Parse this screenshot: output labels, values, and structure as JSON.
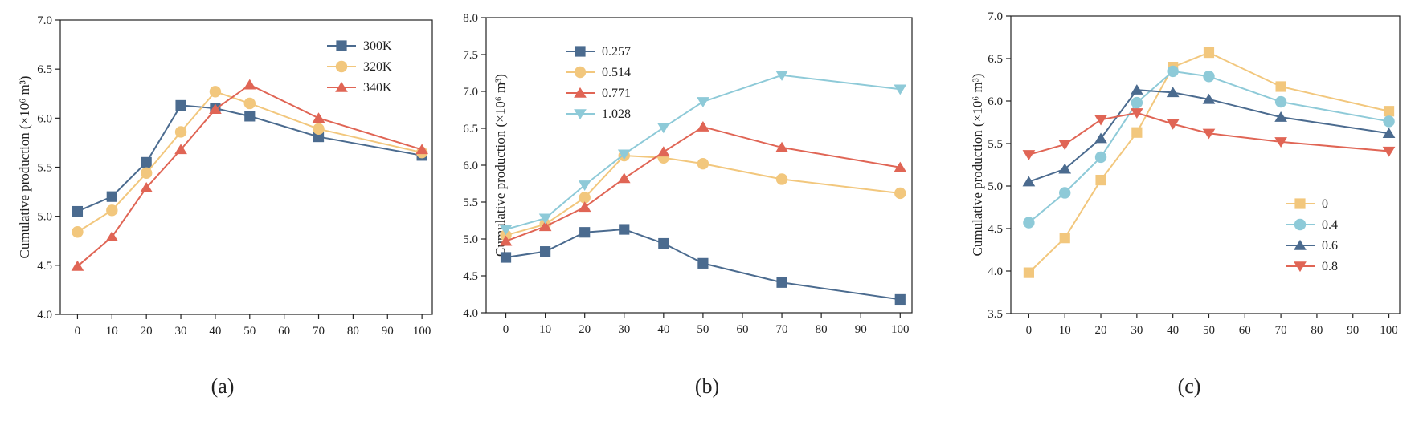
{
  "colors": {
    "blue": "#4b6b8f",
    "yellow": "#f2c77d",
    "red": "#e06555",
    "cyan": "#8ecad8",
    "axis": "#222222"
  },
  "chart_data": [
    {
      "type": "line",
      "caption": "(a)",
      "ylabel": "Cumulative production (×10⁶ m³)",
      "xlabel": "",
      "x": [
        0,
        10,
        20,
        30,
        40,
        50,
        70,
        100
      ],
      "xlim": [
        -5,
        103
      ],
      "ylim": [
        4.0,
        7.0
      ],
      "xticks": [
        0,
        10,
        20,
        30,
        40,
        50,
        60,
        70,
        80,
        90,
        100
      ],
      "yticks": [
        4.0,
        4.5,
        5.0,
        5.5,
        6.0,
        6.5,
        7.0
      ],
      "ytick_labels": [
        "4.0",
        "4.5",
        "5.0",
        "5.5",
        "6.0",
        "6.5",
        "7.0"
      ],
      "legend_position": "top-right",
      "series": [
        {
          "name": "300K",
          "color": "#4b6b8f",
          "marker": "square",
          "values": [
            5.05,
            5.2,
            5.55,
            6.13,
            6.1,
            6.02,
            5.81,
            5.62
          ]
        },
        {
          "name": "320K",
          "color": "#f2c77d",
          "marker": "circle",
          "values": [
            4.84,
            5.06,
            5.44,
            5.86,
            6.27,
            6.15,
            5.89,
            5.65
          ]
        },
        {
          "name": "340K",
          "color": "#e06555",
          "marker": "triangle-up",
          "values": [
            4.49,
            4.79,
            5.29,
            5.68,
            6.09,
            6.34,
            6.0,
            5.68
          ]
        }
      ]
    },
    {
      "type": "line",
      "caption": "(b)",
      "ylabel": "Cumulative production (×10⁶ m³)",
      "xlabel": "",
      "x": [
        0,
        10,
        20,
        30,
        40,
        50,
        70,
        100
      ],
      "xlim": [
        -5,
        103
      ],
      "ylim": [
        4.0,
        8.0
      ],
      "xticks": [
        0,
        10,
        20,
        30,
        40,
        50,
        60,
        70,
        80,
        90,
        100
      ],
      "yticks": [
        4.0,
        4.5,
        5.0,
        5.5,
        6.0,
        6.5,
        7.0,
        7.5,
        8.0
      ],
      "ytick_labels": [
        "4.0",
        "4.5",
        "5.0",
        "5.5",
        "6.0",
        "6.5",
        "7.0",
        "7.5",
        "8.0"
      ],
      "legend_position": "top-left",
      "series": [
        {
          "name": "0.257",
          "color": "#4b6b8f",
          "marker": "square",
          "values": [
            4.75,
            4.83,
            5.09,
            5.13,
            4.94,
            4.67,
            4.41,
            4.18
          ]
        },
        {
          "name": "0.514",
          "color": "#f2c77d",
          "marker": "circle",
          "values": [
            5.05,
            5.2,
            5.56,
            6.13,
            6.1,
            6.02,
            5.81,
            5.62
          ]
        },
        {
          "name": "0.771",
          "color": "#e06555",
          "marker": "triangle-up",
          "values": [
            4.97,
            5.17,
            5.43,
            5.82,
            6.18,
            6.52,
            6.24,
            5.97
          ]
        },
        {
          "name": "1.028",
          "color": "#8ecad8",
          "marker": "triangle-down",
          "values": [
            5.13,
            5.28,
            5.73,
            6.15,
            6.51,
            6.86,
            7.22,
            7.03
          ]
        }
      ]
    },
    {
      "type": "line",
      "caption": "(c)",
      "ylabel": "Cumulative production (×10⁶ m³)",
      "xlabel": "",
      "x": [
        0,
        10,
        20,
        30,
        40,
        50,
        70,
        100
      ],
      "xlim": [
        -5,
        103
      ],
      "ylim": [
        3.5,
        7.0
      ],
      "xticks": [
        0,
        10,
        20,
        30,
        40,
        50,
        60,
        70,
        80,
        90,
        100
      ],
      "yticks": [
        3.5,
        4.0,
        4.5,
        5.0,
        5.5,
        6.0,
        6.5,
        7.0
      ],
      "ytick_labels": [
        "3.5",
        "4.0",
        "4.5",
        "5.0",
        "5.5",
        "6.0",
        "6.5",
        "7.0"
      ],
      "legend_position": "bottom-right",
      "series": [
        {
          "name": "0",
          "color": "#f2c77d",
          "marker": "square",
          "values": [
            3.98,
            4.39,
            5.07,
            5.63,
            6.4,
            6.57,
            6.17,
            5.88
          ]
        },
        {
          "name": "0.4",
          "color": "#8ecad8",
          "marker": "circle",
          "values": [
            4.57,
            4.92,
            5.34,
            5.98,
            6.35,
            6.29,
            5.99,
            5.76
          ]
        },
        {
          "name": "0.6",
          "color": "#4b6b8f",
          "marker": "triangle-up",
          "values": [
            5.05,
            5.2,
            5.56,
            6.13,
            6.1,
            6.02,
            5.81,
            5.62
          ]
        },
        {
          "name": "0.8",
          "color": "#e06555",
          "marker": "triangle-down",
          "values": [
            5.37,
            5.49,
            5.78,
            5.86,
            5.73,
            5.62,
            5.52,
            5.41
          ]
        }
      ]
    }
  ]
}
